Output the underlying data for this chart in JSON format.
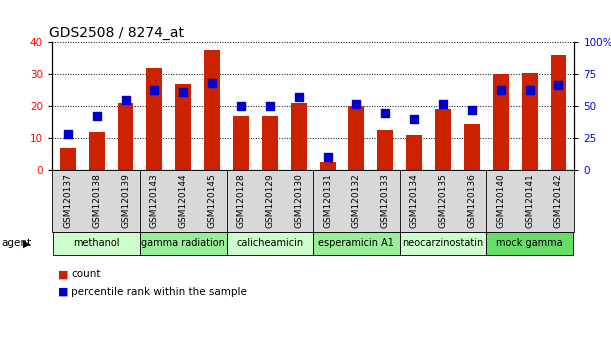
{
  "title": "GDS2508 / 8274_at",
  "samples": [
    "GSM120137",
    "GSM120138",
    "GSM120139",
    "GSM120143",
    "GSM120144",
    "GSM120145",
    "GSM120128",
    "GSM120129",
    "GSM120130",
    "GSM120131",
    "GSM120132",
    "GSM120133",
    "GSM120134",
    "GSM120135",
    "GSM120136",
    "GSM120140",
    "GSM120141",
    "GSM120142"
  ],
  "counts": [
    7,
    12,
    21,
    32,
    27,
    37.5,
    17,
    17,
    21,
    2.5,
    20,
    12.5,
    11,
    19,
    14.5,
    30,
    30.5,
    36
  ],
  "percentiles": [
    28,
    42,
    55,
    63,
    61,
    68,
    50,
    50,
    57,
    10,
    52,
    45,
    40,
    52,
    47,
    63,
    63,
    67
  ],
  "groups": [
    {
      "label": "methanol",
      "start": 0,
      "end": 3,
      "color": "#ccffcc"
    },
    {
      "label": "gamma radiation",
      "start": 3,
      "end": 6,
      "color": "#99ee99"
    },
    {
      "label": "calicheamicin",
      "start": 6,
      "end": 9,
      "color": "#ccffcc"
    },
    {
      "label": "esperamicin A1",
      "start": 9,
      "end": 12,
      "color": "#99ee99"
    },
    {
      "label": "neocarzinostatin",
      "start": 12,
      "end": 15,
      "color": "#ccffcc"
    },
    {
      "label": "mock gamma",
      "start": 15,
      "end": 18,
      "color": "#66dd66"
    }
  ],
  "ylim_left": [
    0,
    40
  ],
  "ylim_right": [
    0,
    100
  ],
  "left_ticks": [
    0,
    10,
    20,
    30,
    40
  ],
  "right_ticks": [
    0,
    25,
    50,
    75,
    100
  ],
  "right_labels": [
    "0",
    "25",
    "50",
    "75",
    "100%"
  ],
  "bar_color": "#cc2200",
  "dot_color": "#0000cc",
  "agent_label": "agent",
  "legend_count": "count",
  "legend_percentile": "percentile rank within the sample",
  "title_fontsize": 10,
  "tick_fontsize": 6.5,
  "group_label_fontsize": 7,
  "bar_width": 0.55,
  "dot_size": 28,
  "xlim": [
    -0.55,
    17.55
  ]
}
